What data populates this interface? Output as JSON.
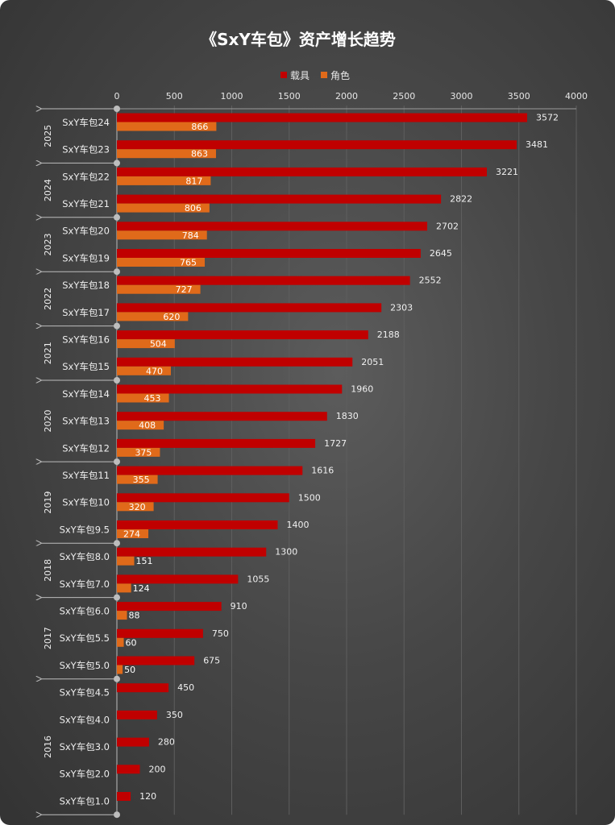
{
  "chart_data": {
    "type": "bar",
    "orientation": "horizontal",
    "title": "《SxY车包》资产增长趋势",
    "xlim": [
      0,
      4000
    ],
    "xticks": [
      0,
      500,
      1000,
      1500,
      2000,
      2500,
      3000,
      3500,
      4000
    ],
    "legend_position": "top",
    "colors": {
      "载具": "#c00000",
      "角色": "#e06a1a"
    },
    "categories": [
      "SxY车包24",
      "SxY车包23",
      "SxY车包22",
      "SxY车包21",
      "SxY车包20",
      "SxY车包19",
      "SxY车包18",
      "SxY车包17",
      "SxY车包16",
      "SxY车包15",
      "SxY车包14",
      "SxY车包13",
      "SxY车包12",
      "SxY车包11",
      "SxY车包10",
      "SxY车包9.5",
      "SxY车包8.0",
      "SxY车包7.0",
      "SxY车包6.0",
      "SxY车包5.5",
      "SxY车包5.0",
      "SxY车包4.5",
      "SxY车包4.0",
      "SxY车包3.0",
      "SxY车包2.0",
      "SxY车包1.0"
    ],
    "series": [
      {
        "name": "载具",
        "values": [
          3572,
          3481,
          3221,
          2822,
          2702,
          2645,
          2552,
          2303,
          2188,
          2051,
          1960,
          1830,
          1727,
          1616,
          1500,
          1400,
          1300,
          1055,
          910,
          750,
          675,
          450,
          350,
          280,
          200,
          120
        ]
      },
      {
        "name": "角色",
        "values": [
          866,
          863,
          817,
          806,
          784,
          765,
          727,
          620,
          504,
          470,
          453,
          408,
          375,
          355,
          320,
          274,
          151,
          124,
          88,
          60,
          50,
          null,
          null,
          null,
          null,
          null
        ]
      }
    ],
    "year_groups": [
      {
        "year": "2025",
        "count": 2
      },
      {
        "year": "2024",
        "count": 2
      },
      {
        "year": "2023",
        "count": 2
      },
      {
        "year": "2022",
        "count": 2
      },
      {
        "year": "2021",
        "count": 2
      },
      {
        "year": "2020",
        "count": 3
      },
      {
        "year": "2019",
        "count": 3
      },
      {
        "year": "2018",
        "count": 2
      },
      {
        "year": "2017",
        "count": 3
      },
      {
        "year": "2016",
        "count": 5
      }
    ]
  }
}
